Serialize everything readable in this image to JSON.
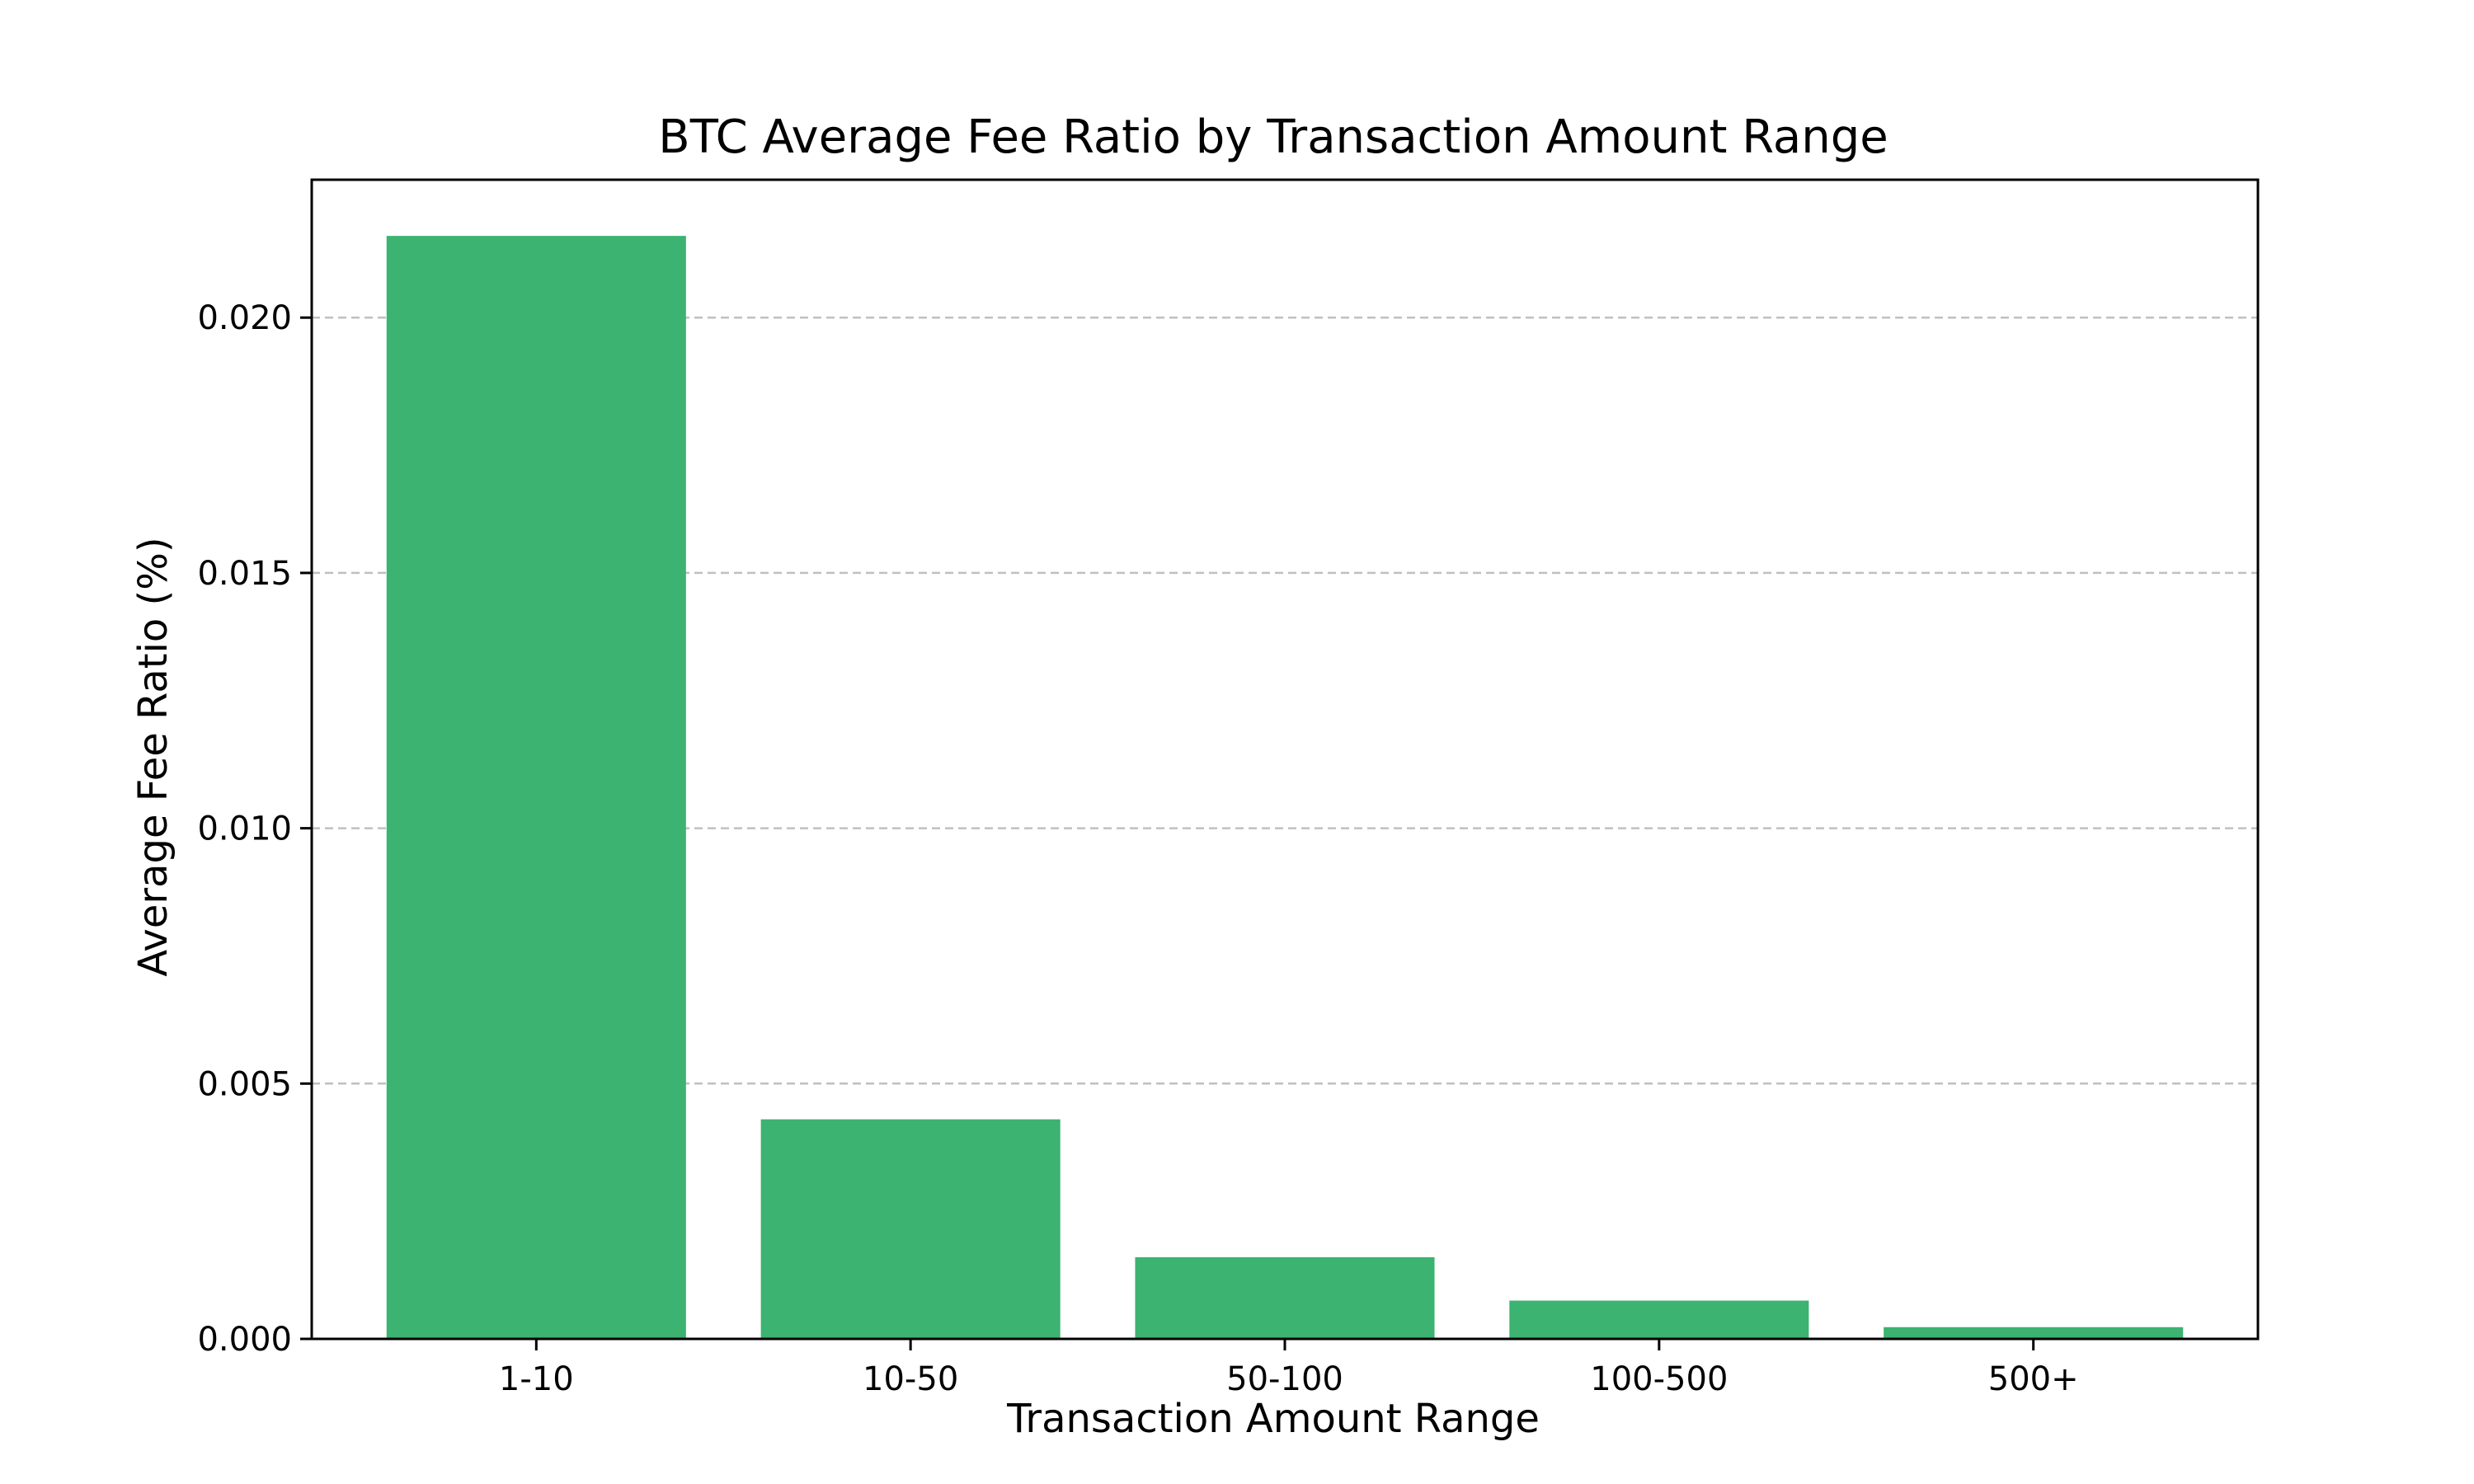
{
  "chart_data": {
    "type": "bar",
    "title": "BTC Average Fee Ratio by Transaction Amount Range",
    "xlabel": "Transaction Amount Range",
    "ylabel": "Average Fee Ratio (%)",
    "categories": [
      "1-10",
      "10-50",
      "50-100",
      "100-500",
      "500+"
    ],
    "values": [
      0.0216,
      0.0043,
      0.0016,
      0.00075,
      0.00023
    ],
    "ylim": [
      0,
      0.0227
    ],
    "yticks": [
      0.0,
      0.005,
      0.01,
      0.015,
      0.02
    ],
    "ytick_labels": [
      "0.000",
      "0.005",
      "0.010",
      "0.015",
      "0.020"
    ],
    "grid": "y-dashed",
    "bar_color": "#3cb371",
    "grid_color": "#c0c0c0",
    "legend": "none"
  }
}
